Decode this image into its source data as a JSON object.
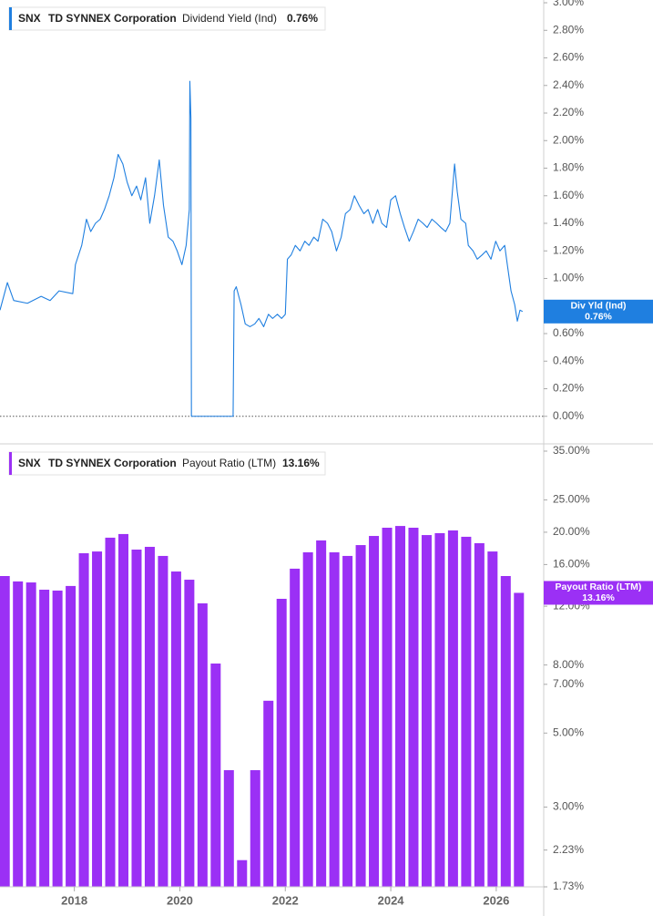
{
  "chart_data": [
    {
      "type": "line",
      "ticker": "SNX",
      "company": "TD SYNNEX Corporation",
      "badge": "Div Yld (Ind)",
      "current": {
        "value": 0.76,
        "label": "0.76%"
      },
      "xlim": [
        2016.59,
        2026.9
      ],
      "ylim": [
        -0.2,
        3.02
      ],
      "yticks": [
        {
          "value": 0,
          "label": "0.00%"
        },
        {
          "value": 0.2,
          "label": "0.20%"
        },
        {
          "value": 0.4,
          "label": "0.40%"
        },
        {
          "value": 0.6,
          "label": "0.60%"
        },
        {
          "value": 0.8,
          "label": "0.80%"
        },
        {
          "value": 1.0,
          "label": "1.00%"
        },
        {
          "value": 1.2,
          "label": "1.20%"
        },
        {
          "value": 1.4,
          "label": "1.40%"
        },
        {
          "value": 1.6,
          "label": "1.60%"
        },
        {
          "value": 1.8,
          "label": "1.80%"
        },
        {
          "value": 2.0,
          "label": "2.00%"
        },
        {
          "value": 2.2,
          "label": "2.20%"
        },
        {
          "value": 2.4,
          "label": "2.40%"
        },
        {
          "value": 2.6,
          "label": "2.60%"
        },
        {
          "value": 2.8,
          "label": "2.80%"
        },
        {
          "value": 3.0,
          "label": "3.00%"
        }
      ],
      "series": [
        {
          "name": "Dividend Yield (Ind)",
          "color": "#1f7fe0",
          "x": [
            2016.59,
            2016.73,
            2016.85,
            2017.11,
            2017.37,
            2017.54,
            2017.71,
            2017.97,
            2018.02,
            2018.14,
            2018.23,
            2018.31,
            2018.4,
            2018.49,
            2018.57,
            2018.66,
            2018.75,
            2018.83,
            2018.92,
            2019.0,
            2019.09,
            2019.18,
            2019.26,
            2019.35,
            2019.43,
            2019.52,
            2019.61,
            2019.69,
            2019.78,
            2019.87,
            2019.95,
            2020.04,
            2020.12,
            2020.18,
            2020.19,
            2020.21,
            2020.22,
            2021.01,
            2021.03,
            2021.07,
            2021.16,
            2021.24,
            2021.33,
            2021.42,
            2021.5,
            2021.59,
            2021.68,
            2021.76,
            2021.85,
            2021.93,
            2022.0,
            2022.04,
            2022.11,
            2022.19,
            2022.28,
            2022.37,
            2022.45,
            2022.54,
            2022.62,
            2022.71,
            2022.8,
            2022.88,
            2022.97,
            2023.06,
            2023.14,
            2023.23,
            2023.31,
            2023.4,
            2023.49,
            2023.57,
            2023.66,
            2023.75,
            2023.83,
            2023.92,
            2024.0,
            2024.09,
            2024.18,
            2024.26,
            2024.35,
            2024.43,
            2024.52,
            2024.61,
            2024.69,
            2024.78,
            2024.87,
            2024.95,
            2025.04,
            2025.12,
            2025.21,
            2025.26,
            2025.33,
            2025.42,
            2025.47,
            2025.56,
            2025.64,
            2025.73,
            2025.81,
            2025.9,
            2025.99,
            2026.07,
            2026.16,
            2026.21,
            2026.28,
            2026.35,
            2026.4,
            2026.45,
            2026.5
          ],
          "values": [
            0.77,
            0.97,
            0.84,
            0.82,
            0.87,
            0.84,
            0.91,
            0.89,
            1.1,
            1.24,
            1.43,
            1.34,
            1.4,
            1.43,
            1.5,
            1.6,
            1.73,
            1.9,
            1.83,
            1.7,
            1.6,
            1.67,
            1.57,
            1.73,
            1.4,
            1.6,
            1.86,
            1.53,
            1.3,
            1.27,
            1.2,
            1.1,
            1.24,
            1.5,
            2.43,
            2.16,
            0,
            0,
            0.91,
            0.94,
            0.81,
            0.67,
            0.65,
            0.67,
            0.71,
            0.65,
            0.74,
            0.71,
            0.74,
            0.71,
            0.74,
            1.14,
            1.17,
            1.24,
            1.2,
            1.27,
            1.24,
            1.3,
            1.27,
            1.43,
            1.4,
            1.34,
            1.2,
            1.3,
            1.47,
            1.5,
            1.6,
            1.53,
            1.47,
            1.5,
            1.4,
            1.5,
            1.4,
            1.37,
            1.57,
            1.6,
            1.47,
            1.37,
            1.27,
            1.34,
            1.43,
            1.4,
            1.37,
            1.43,
            1.4,
            1.37,
            1.34,
            1.4,
            1.83,
            1.63,
            1.43,
            1.4,
            1.24,
            1.2,
            1.14,
            1.17,
            1.2,
            1.14,
            1.27,
            1.2,
            1.24,
            1.1,
            0.91,
            0.81,
            0.69,
            0.77,
            0.76
          ]
        }
      ]
    },
    {
      "type": "bar",
      "ticker": "SNX",
      "company": "TD SYNNEX Corporation",
      "badge": "Payout Ratio (LTM)",
      "current": {
        "value": 13.16,
        "label": "13.16%"
      },
      "xlim": [
        2016.59,
        2026.9
      ],
      "xticks": [
        2018,
        2020,
        2022,
        2024,
        2026
      ],
      "bar_width_years": 0.19,
      "ylim": [
        1.73,
        36.8
      ],
      "log": true,
      "yticks": [
        {
          "value": 1.73,
          "label": "1.73%"
        },
        {
          "value": 2.23,
          "label": "2.23%"
        },
        {
          "value": 3,
          "label": "3.00%"
        },
        {
          "value": 5,
          "label": "5.00%"
        },
        {
          "value": 7,
          "label": "7.00%"
        },
        {
          "value": 8,
          "label": "8.00%"
        },
        {
          "value": 12,
          "label": "12.00%"
        },
        {
          "value": 16,
          "label": "16.00%"
        },
        {
          "value": 20,
          "label": "20.00%"
        },
        {
          "value": 25,
          "label": "25.00%"
        },
        {
          "value": 35,
          "label": "35.00%"
        }
      ],
      "series": [
        {
          "name": "Payout Ratio (LTM)",
          "color": "#9b30f5",
          "x": [
            2016.68,
            2016.93,
            2017.18,
            2017.43,
            2017.68,
            2017.93,
            2018.18,
            2018.43,
            2018.68,
            2018.93,
            2019.18,
            2019.43,
            2019.68,
            2019.93,
            2020.18,
            2020.43,
            2020.68,
            2020.93,
            2021.18,
            2021.43,
            2021.68,
            2021.93,
            2022.18,
            2022.43,
            2022.68,
            2022.93,
            2023.18,
            2023.43,
            2023.68,
            2023.93,
            2024.18,
            2024.43,
            2024.68,
            2024.93,
            2025.18,
            2025.43,
            2025.68,
            2025.93,
            2026.18,
            2026.43
          ],
          "values": [
            14.78,
            14.24,
            14.14,
            13.45,
            13.37,
            13.8,
            17.3,
            17.51,
            19.26,
            19.75,
            17.74,
            18.08,
            16.98,
            15.25,
            14.41,
            12.24,
            8.08,
            3.87,
            2.08,
            3.87,
            6.25,
            12.63,
            15.55,
            17.41,
            18.9,
            17.41,
            16.98,
            18.3,
            19.49,
            20.63,
            20.88,
            20.63,
            19.61,
            19.87,
            20.25,
            19.38,
            18.54,
            17.51,
            14.78,
            13.16
          ]
        }
      ]
    }
  ]
}
